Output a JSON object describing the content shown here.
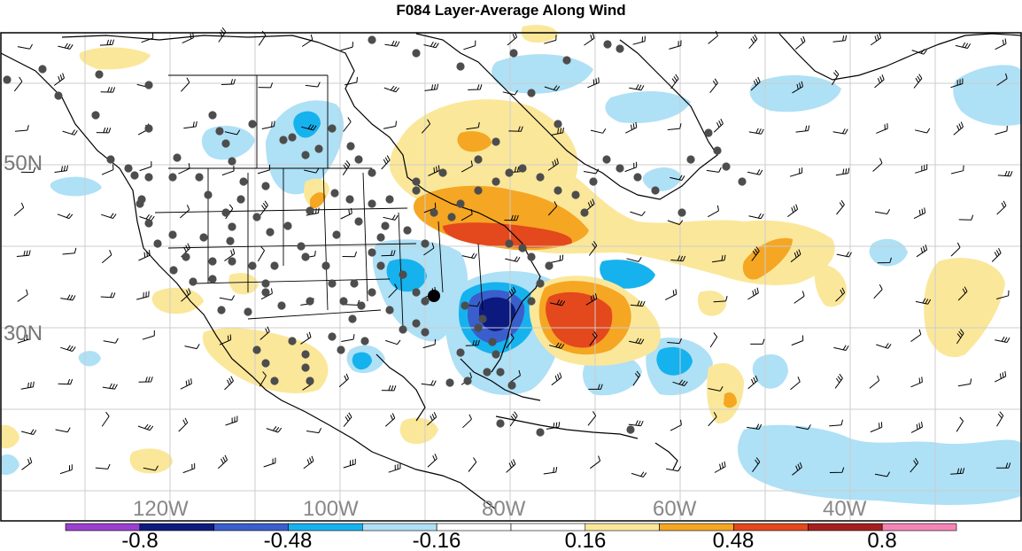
{
  "title": "F084 Layer-Average Along Wind",
  "lat_labels": [
    "50N",
    "30N"
  ],
  "lon_labels": [
    "120W",
    "100W",
    "80W",
    "60W",
    "40W"
  ],
  "colorbar": {
    "colors": [
      "#9b3fd0",
      "#0c1a80",
      "#3a5fcc",
      "#16b2ee",
      "#aee0f6",
      "#ffffff",
      "#ffffff",
      "#fbe79a",
      "#f5a623",
      "#e4481d",
      "#a61f1f",
      "#f584b6"
    ],
    "tick_labels": [
      "-0.8",
      "-0.48",
      "-0.16",
      "0.16",
      "0.48",
      "0.8"
    ]
  },
  "palette": {
    "light_blue": "#aee0f6",
    "mid_blue": "#16b2ee",
    "blue": "#3a5fcc",
    "dark_blue": "#0c1a80",
    "light_yellow": "#fbe79a",
    "orange": "#f5a623",
    "red_orange": "#e4481d",
    "station": "#4d4d4d"
  }
}
